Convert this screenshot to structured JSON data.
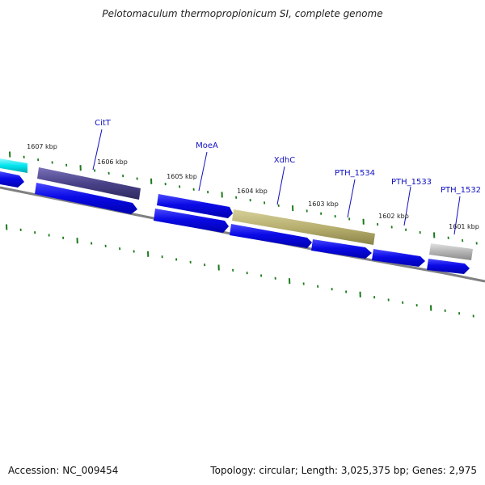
{
  "title": "Pelotomaculum thermopropionicum SI, complete genome",
  "footer": {
    "accession": "Accession: NC_009454",
    "topology": "Topology: circular; Length: 3,025,375 bp; Genes: 2,975"
  },
  "tick_labels": [
    "1607 kbp",
    "1606 kbp",
    "1605 kbp",
    "1604 kbp",
    "1603 kbp",
    "1602 kbp",
    "1601 kbp"
  ],
  "gene_labels": [
    "CitT",
    "MoeA",
    "XdhC",
    "PTH_1534",
    "PTH_1533",
    "PTH_1532"
  ],
  "colors": {
    "cds": "#0a0ae6",
    "citT": "#4a4288",
    "xdhC": "#b8b070",
    "cyan": "#00e5ee",
    "gray_feature": "#b4b4b4",
    "backbone": "#808080",
    "tick": "#1a7a1a",
    "label": "#1010c0"
  }
}
